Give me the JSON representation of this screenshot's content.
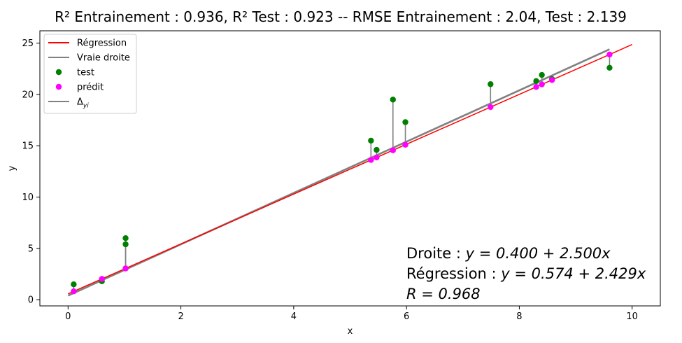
{
  "chart_data": {
    "type": "scatter",
    "title": "R² Entrainement : 0.936, R² Test : 0.923 --  RMSE Entrainement : 2.04, Test : 2.139",
    "xlabel": "x",
    "ylabel": "y",
    "xlim": [
      -0.5,
      10.5
    ],
    "ylim": [
      -0.6,
      26.2
    ],
    "xticks": [
      0,
      2,
      4,
      6,
      8,
      10
    ],
    "yticks": [
      0,
      5,
      10,
      15,
      20,
      25
    ],
    "grid": false,
    "legend_position": "top-left",
    "regression_line": {
      "name": "Régression",
      "color": "#ff0000",
      "x": [
        0,
        10
      ],
      "y": [
        0.574,
        24.864
      ]
    },
    "true_line": {
      "name": "Vraie droite",
      "color": "#808080",
      "x": [
        0,
        9.6
      ],
      "y": [
        0.4,
        24.4
      ]
    },
    "series": [
      {
        "name": "test",
        "color": "#008000",
        "points": [
          {
            "x": 0.1,
            "y": 1.5
          },
          {
            "x": 0.6,
            "y": 1.8
          },
          {
            "x": 1.02,
            "y": 5.4
          },
          {
            "x": 1.02,
            "y": 6.0
          },
          {
            "x": 5.37,
            "y": 15.5
          },
          {
            "x": 5.47,
            "y": 14.6
          },
          {
            "x": 5.76,
            "y": 19.5
          },
          {
            "x": 5.98,
            "y": 17.3
          },
          {
            "x": 7.49,
            "y": 21.0
          },
          {
            "x": 8.3,
            "y": 21.3
          },
          {
            "x": 8.4,
            "y": 21.9
          },
          {
            "x": 8.58,
            "y": 21.5
          },
          {
            "x": 9.6,
            "y": 22.6
          }
        ]
      },
      {
        "name": "prédit",
        "color": "#ff00ff",
        "points": [
          {
            "x": 0.1,
            "y": 0.82
          },
          {
            "x": 0.6,
            "y": 2.03
          },
          {
            "x": 1.02,
            "y": 3.05
          },
          {
            "x": 1.02,
            "y": 3.05
          },
          {
            "x": 5.37,
            "y": 13.62
          },
          {
            "x": 5.47,
            "y": 13.86
          },
          {
            "x": 5.76,
            "y": 14.56
          },
          {
            "x": 5.98,
            "y": 15.1
          },
          {
            "x": 7.49,
            "y": 18.77
          },
          {
            "x": 8.3,
            "y": 20.73
          },
          {
            "x": 8.4,
            "y": 20.98
          },
          {
            "x": 8.58,
            "y": 21.41
          },
          {
            "x": 9.6,
            "y": 23.89
          }
        ]
      }
    ],
    "residuals": {
      "name": "Δ",
      "subscript": "yi",
      "color": "#808080"
    },
    "legend": [
      {
        "label": "Régression",
        "kind": "line",
        "color": "#ff0000"
      },
      {
        "label": "Vraie droite",
        "kind": "line",
        "color": "#808080"
      },
      {
        "label": "test",
        "kind": "marker",
        "color": "#008000"
      },
      {
        "label": "prédit",
        "kind": "marker",
        "color": "#ff00ff"
      },
      {
        "label": "Δ",
        "sub": "yi",
        "kind": "line",
        "color": "#808080"
      }
    ],
    "annotations": [
      {
        "prefix": "Droite : ",
        "math": "y = 0.400 + 2.500x"
      },
      {
        "prefix": "Régression : ",
        "math": "y = 0.574 + 2.429x"
      },
      {
        "prefix": "",
        "math": "R = 0.968"
      }
    ]
  }
}
